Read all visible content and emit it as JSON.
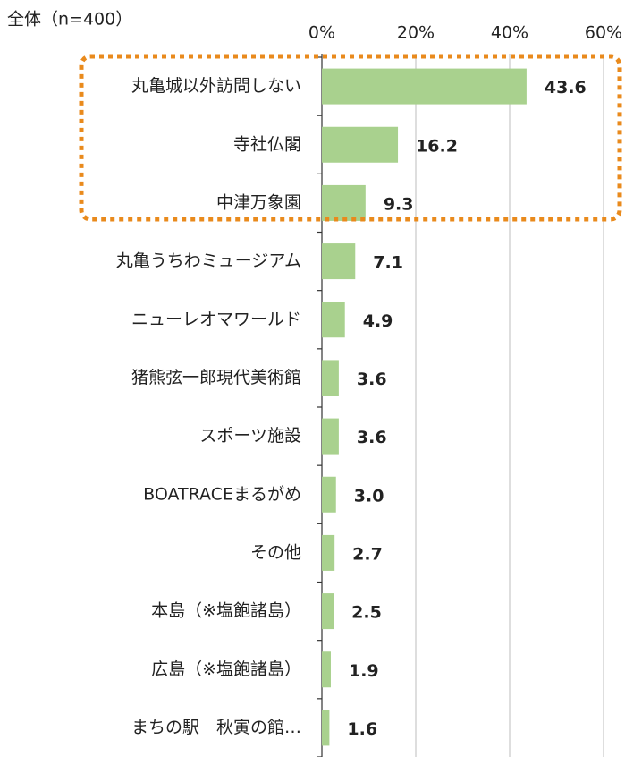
{
  "chart_data": {
    "type": "bar",
    "orientation": "horizontal",
    "title": "全体（n=400）",
    "categories": [
      "丸亀城以外訪問しない",
      "寺社仏閣",
      "中津万象園",
      "丸亀うちわミュージアム",
      "ニューレオマワールド",
      "猪熊弦一郎現代美術館",
      "スポーツ施設",
      "BOATRACEまるがめ",
      "その他",
      "本島（※塩飽諸島）",
      "広島（※塩飽諸島）",
      "まちの駅　秋寅の館…"
    ],
    "values": [
      43.6,
      16.2,
      9.3,
      7.1,
      4.9,
      3.6,
      3.6,
      3.0,
      2.7,
      2.5,
      1.9,
      1.6
    ],
    "value_labels": [
      "43.6",
      "16.2",
      "9.3",
      "7.1",
      "4.9",
      "3.6",
      "3.6",
      "3.0",
      "2.7",
      "2.5",
      "1.9",
      "1.6"
    ],
    "color": "#a9d18e",
    "xlim": [
      0,
      60
    ],
    "xticks": [
      {
        "value": 0,
        "label": "0%"
      },
      {
        "value": 20,
        "label": "20%"
      },
      {
        "value": 40,
        "label": "40%"
      },
      {
        "value": 60,
        "label": "60%"
      }
    ],
    "grid": true
  }
}
